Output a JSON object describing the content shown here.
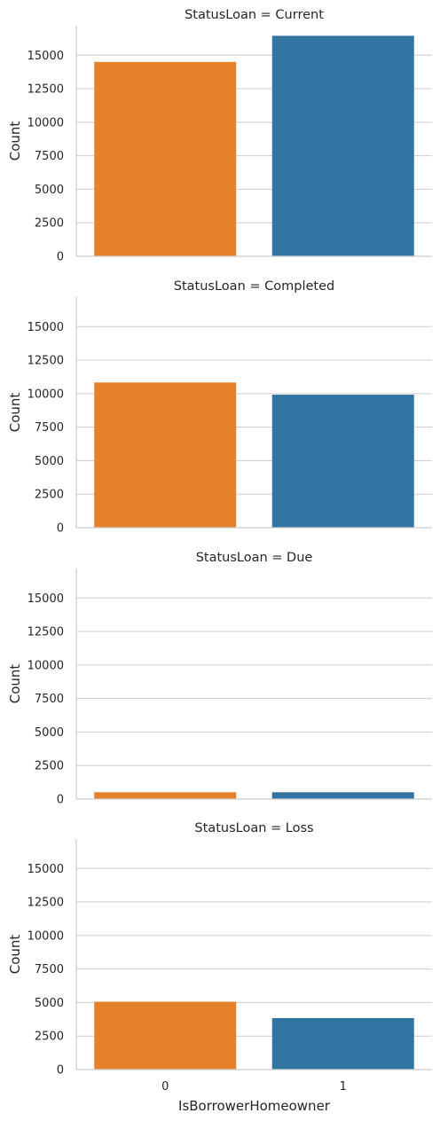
{
  "chart_data": {
    "type": "bar",
    "facet_variable": "StatusLoan",
    "xlabel": "IsBorrowerHomeowner",
    "ylabel": "Count",
    "ylim": [
      0,
      17200
    ],
    "yticks": [
      0,
      2500,
      5000,
      7500,
      10000,
      12500,
      15000
    ],
    "ytick_labels": [
      "0",
      "2500",
      "5000",
      "7500",
      "10000",
      "12500",
      "15000"
    ],
    "categories": [
      "0",
      "1"
    ],
    "colors": [
      "#e6812b",
      "#3274a1"
    ],
    "grid": true,
    "panels": [
      {
        "title": "StatusLoan = Current",
        "values": [
          14500,
          16450
        ]
      },
      {
        "title": "StatusLoan = Completed",
        "values": [
          10830,
          9920
        ]
      },
      {
        "title": "StatusLoan = Due",
        "values": [
          510,
          510
        ]
      },
      {
        "title": "StatusLoan = Loss",
        "values": [
          5060,
          3840
        ]
      }
    ]
  }
}
